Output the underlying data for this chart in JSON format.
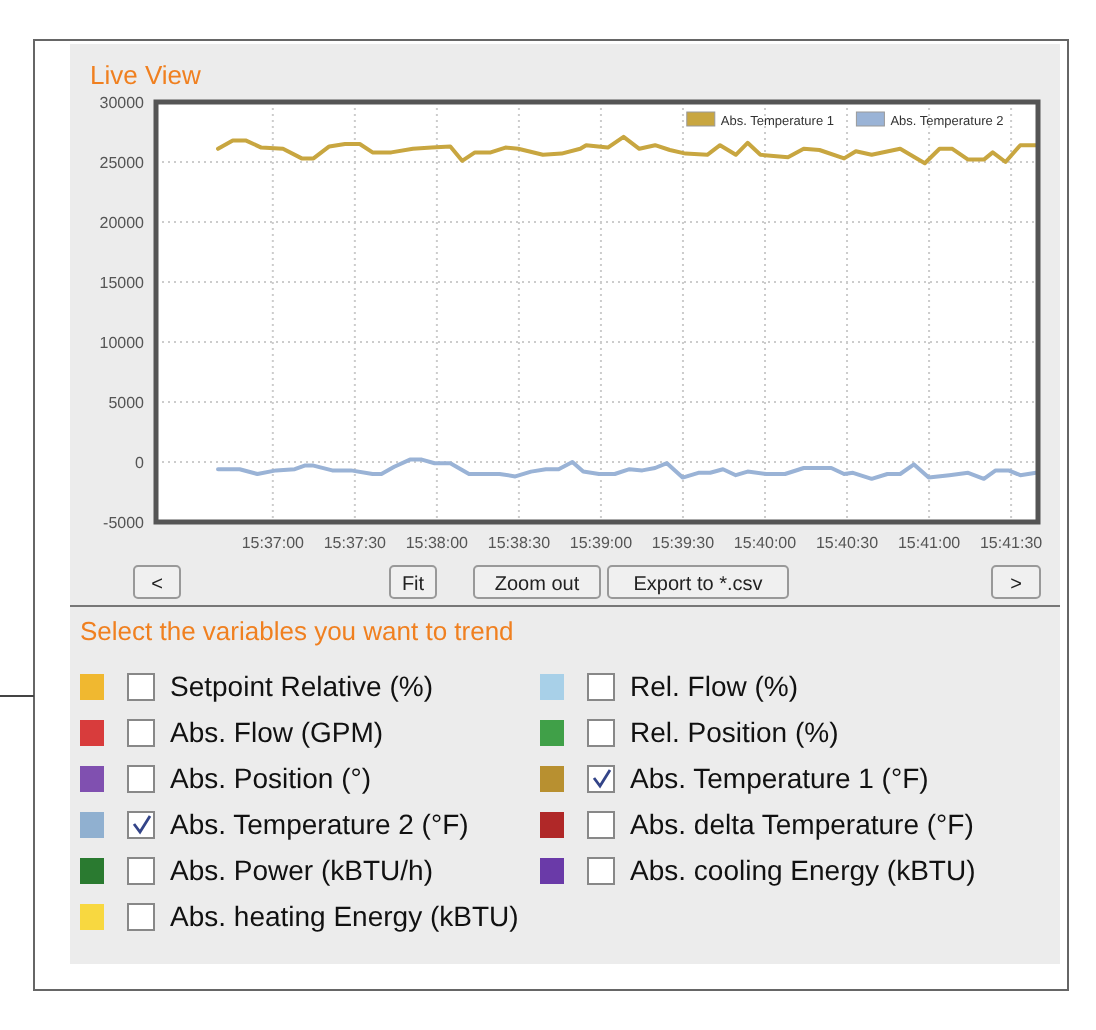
{
  "chart_data": [
    {
      "type": "line",
      "title": "Live View",
      "xlim": [
        15.6048,
        15.6944
      ],
      "ylim": [
        -5000,
        30000
      ],
      "xticks": [
        {
          "value": 15.616667,
          "label": "15:37:00"
        },
        {
          "value": 15.625,
          "label": "15:37:30"
        },
        {
          "value": 15.633333,
          "label": "15:38:00"
        },
        {
          "value": 15.641667,
          "label": "15:38:30"
        },
        {
          "value": 15.65,
          "label": "15:39:00"
        },
        {
          "value": 15.658333,
          "label": "15:39:30"
        },
        {
          "value": 15.666667,
          "label": "15:40:00"
        },
        {
          "value": 15.675,
          "label": "15:40:30"
        },
        {
          "value": 15.683333,
          "label": "15:41:00"
        },
        {
          "value": 15.691667,
          "label": "15:41:30"
        }
      ],
      "yticks": [
        -5000,
        0,
        5000,
        10000,
        15000,
        20000,
        25000,
        30000
      ],
      "grid": true,
      "legend": "top right",
      "marker": "none",
      "line_style": "solid",
      "series": [
        {
          "name": "Abs. Temperature 1",
          "color": "#c8a640",
          "x": [
            15.6111,
            15.6126,
            15.6139,
            15.6155,
            15.6177,
            15.6196,
            15.6208,
            15.6224,
            15.624,
            15.6255,
            15.6268,
            15.6287,
            15.6309,
            15.6328,
            15.6347,
            15.6359,
            15.6372,
            15.6388,
            15.6403,
            15.6416,
            15.6441,
            15.646,
            15.6479,
            15.6485,
            15.6507,
            15.6523,
            15.6539,
            15.6555,
            15.657,
            15.6586,
            15.6608,
            15.6621,
            15.6637,
            15.6649,
            15.6662,
            15.669,
            15.6706,
            15.6722,
            15.6747,
            15.6759,
            15.6775,
            15.6804,
            15.6829,
            15.6844,
            15.6857,
            15.6873,
            15.6889,
            15.6898,
            15.6911,
            15.6926,
            15.6942
          ],
          "values": [
            26100,
            26800,
            26800,
            26200,
            26100,
            25300,
            25300,
            26300,
            26500,
            26500,
            25800,
            25800,
            26100,
            26200,
            26300,
            25100,
            25800,
            25800,
            26200,
            26100,
            25600,
            25700,
            26100,
            26400,
            26200,
            27100,
            26100,
            26400,
            26000,
            25700,
            25600,
            26400,
            25600,
            26600,
            25600,
            25400,
            26100,
            26000,
            25300,
            25900,
            25600,
            26100,
            24900,
            26100,
            26100,
            25200,
            25200,
            25800,
            25000,
            26400,
            26400
          ]
        },
        {
          "name": "Abs. Temperature 2",
          "color": "#9ab3d6",
          "x": [
            15.6111,
            15.6133,
            15.6151,
            15.617,
            15.6189,
            15.6199,
            15.6208,
            15.6227,
            15.6246,
            15.6268,
            15.6277,
            15.629,
            15.6306,
            15.6318,
            15.6331,
            15.6347,
            15.6366,
            15.6397,
            15.6413,
            15.6429,
            15.6444,
            15.6457,
            15.6471,
            15.6482,
            15.6498,
            15.6514,
            15.6529,
            15.6542,
            15.6555,
            15.6567,
            15.6583,
            15.6599,
            15.6611,
            15.6624,
            15.6637,
            15.6649,
            15.6668,
            15.6687,
            15.6706,
            15.6734,
            15.6747,
            15.6756,
            15.6775,
            15.6791,
            15.6804,
            15.6818,
            15.6833,
            15.6854,
            15.6873,
            15.6889,
            15.6901,
            15.6914,
            15.6926,
            15.6942
          ],
          "values": [
            -600,
            -600,
            -1000,
            -700,
            -600,
            -300,
            -300,
            -700,
            -700,
            -1000,
            -1000,
            -400,
            200,
            200,
            -100,
            -100,
            -1000,
            -1000,
            -1200,
            -800,
            -600,
            -600,
            0,
            -800,
            -1000,
            -1000,
            -600,
            -700,
            -500,
            -100,
            -1300,
            -900,
            -900,
            -600,
            -1100,
            -800,
            -1000,
            -1000,
            -500,
            -500,
            -1000,
            -900,
            -1400,
            -1000,
            -1000,
            -200,
            -1300,
            -1100,
            -900,
            -1400,
            -700,
            -700,
            -1100,
            -900
          ]
        }
      ],
      "annotations": [
        "<",
        "Fit",
        "Zoom out",
        "Export to *.csv",
        ">"
      ]
    },
    {
      "type": "other",
      "title": "Select the variables you want to trend",
      "annotations": [
        "Setpoint Relative (%)",
        "Rel. Flow (%)",
        "Abs. Flow (GPM)",
        "Rel. Position (%)",
        "Abs. Position (°)",
        "Abs. Temperature 1 (°F)",
        "Abs. Temperature 2 (°F)",
        "Abs. delta Temperature (°F)",
        "Abs. Power (kBTU/h)",
        "Abs. cooling Energy (kBTU)",
        "Abs. heating Energy (kBTU)"
      ]
    }
  ]
}
